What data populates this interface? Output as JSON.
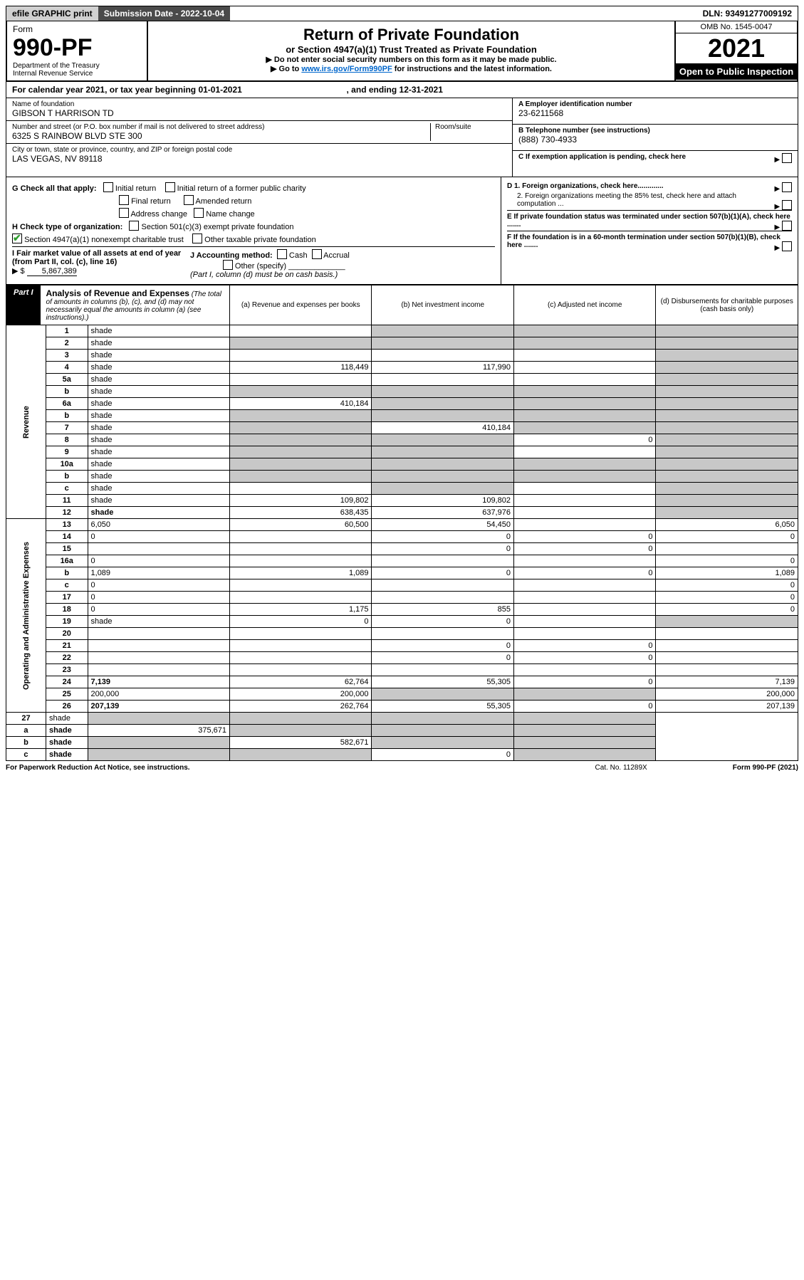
{
  "topbar": {
    "efile": "efile GRAPHIC print",
    "subdate_label": "Submission Date - 2022-10-04",
    "dln": "DLN: 93491277009192"
  },
  "header": {
    "form_label": "Form",
    "form_no": "990-PF",
    "dept": "Department of the Treasury",
    "irs": "Internal Revenue Service",
    "title1": "Return of Private Foundation",
    "title2": "or Section 4947(a)(1) Trust Treated as Private Foundation",
    "instr1": "▶ Do not enter social security numbers on this form as it may be made public.",
    "instr2_pre": "▶ Go to ",
    "instr2_link": "www.irs.gov/Form990PF",
    "instr2_post": " for instructions and the latest information.",
    "omb": "OMB No. 1545-0047",
    "taxyear": "2021",
    "openpub": "Open to Public Inspection"
  },
  "calyear": {
    "text_a": "For calendar year 2021, or tax year beginning 01-01-2021",
    "text_b": ", and ending 12-31-2021"
  },
  "identity": {
    "name_label": "Name of foundation",
    "name": "GIBSON T HARRISON TD",
    "addr_label": "Number and street (or P.O. box number if mail is not delivered to street address)",
    "roomsuite_label": "Room/suite",
    "addr": "6325 S RAINBOW BLVD STE 300",
    "city_label": "City or town, state or province, country, and ZIP or foreign postal code",
    "city": "LAS VEGAS, NV  89118",
    "ein_label": "A Employer identification number",
    "ein": "23-6211568",
    "phone_label": "B Telephone number (see instructions)",
    "phone": "(888) 730-4933",
    "c_label": "C If exemption application is pending, check here"
  },
  "checks_left": {
    "g_label": "G Check all that apply:",
    "g1": "Initial return",
    "g2": "Initial return of a former public charity",
    "g3": "Final return",
    "g4": "Amended return",
    "g5": "Address change",
    "g6": "Name change",
    "h_label": "H Check type of organization:",
    "h1": "Section 501(c)(3) exempt private foundation",
    "h2": "Section 4947(a)(1) nonexempt charitable trust",
    "h3": "Other taxable private foundation",
    "i_label": "I Fair market value of all assets at end of year (from Part II, col. (c), line 16)",
    "i_val_prefix": "▶ $ ",
    "i_val": "5,867,389",
    "j_label": "J Accounting method:",
    "j1": "Cash",
    "j2": "Accrual",
    "j3": "Other (specify)",
    "j_note": "(Part I, column (d) must be on cash basis.)"
  },
  "checks_right": {
    "d1": "D 1. Foreign organizations, check here.............",
    "d2": "2. Foreign organizations meeting the 85% test, check here and attach computation ...",
    "e": "E  If private foundation status was terminated under section 507(b)(1)(A), check here .......",
    "f": "F  If the foundation is in a 60-month termination under section 507(b)(1)(B), check here ......."
  },
  "part1": {
    "label": "Part I",
    "title": "Analysis of Revenue and Expenses",
    "note": " (The total of amounts in columns (b), (c), and (d) may not necessarily equal the amounts in column (a) (see instructions).)",
    "col_a": "(a)  Revenue and expenses per books",
    "col_b": "(b)  Net investment income",
    "col_c": "(c)  Adjusted net income",
    "col_d": "(d)  Disbursements for charitable purposes (cash basis only)"
  },
  "side_labels": {
    "revenue": "Revenue",
    "expenses": "Operating and Administrative Expenses"
  },
  "rows": [
    {
      "n": "1",
      "d": "shade",
      "a": "",
      "b": "shade",
      "c": "shade"
    },
    {
      "n": "2",
      "d": "shade",
      "a": "shade",
      "b": "shade",
      "c": "shade"
    },
    {
      "n": "3",
      "d": "shade",
      "a": "",
      "b": "",
      "c": ""
    },
    {
      "n": "4",
      "d": "shade",
      "a": "118,449",
      "b": "117,990",
      "c": ""
    },
    {
      "n": "5a",
      "d": "shade",
      "a": "",
      "b": "",
      "c": ""
    },
    {
      "n": "b",
      "d": "shade",
      "a": "shade",
      "b": "shade",
      "c": "shade"
    },
    {
      "n": "6a",
      "d": "shade",
      "a": "410,184",
      "b": "shade",
      "c": "shade"
    },
    {
      "n": "b",
      "d": "shade",
      "a": "shade",
      "b": "shade",
      "c": "shade"
    },
    {
      "n": "7",
      "d": "shade",
      "a": "shade",
      "b": "410,184",
      "c": "shade"
    },
    {
      "n": "8",
      "d": "shade",
      "a": "shade",
      "b": "shade",
      "c": "0"
    },
    {
      "n": "9",
      "d": "shade",
      "a": "shade",
      "b": "shade",
      "c": ""
    },
    {
      "n": "10a",
      "d": "shade",
      "a": "shade",
      "b": "shade",
      "c": "shade"
    },
    {
      "n": "b",
      "d": "shade",
      "a": "shade",
      "b": "shade",
      "c": "shade"
    },
    {
      "n": "c",
      "d": "shade",
      "a": "",
      "b": "shade",
      "c": ""
    },
    {
      "n": "11",
      "d": "shade",
      "a": "109,802",
      "b": "109,802",
      "c": ""
    },
    {
      "n": "12",
      "d": "shade",
      "a": "638,435",
      "b": "637,976",
      "c": "",
      "bold": true
    }
  ],
  "exp_rows": [
    {
      "n": "13",
      "d": "6,050",
      "a": "60,500",
      "b": "54,450",
      "c": ""
    },
    {
      "n": "14",
      "d": "0",
      "a": "",
      "b": "0",
      "c": "0"
    },
    {
      "n": "15",
      "d": "",
      "a": "",
      "b": "0",
      "c": "0"
    },
    {
      "n": "16a",
      "d": "0",
      "a": "",
      "b": "",
      "c": ""
    },
    {
      "n": "b",
      "d": "1,089",
      "a": "1,089",
      "b": "0",
      "c": "0"
    },
    {
      "n": "c",
      "d": "0",
      "a": "",
      "b": "",
      "c": ""
    },
    {
      "n": "17",
      "d": "0",
      "a": "",
      "b": "",
      "c": ""
    },
    {
      "n": "18",
      "d": "0",
      "a": "1,175",
      "b": "855",
      "c": ""
    },
    {
      "n": "19",
      "d": "shade",
      "a": "0",
      "b": "0",
      "c": ""
    },
    {
      "n": "20",
      "d": "",
      "a": "",
      "b": "",
      "c": ""
    },
    {
      "n": "21",
      "d": "",
      "a": "",
      "b": "0",
      "c": "0"
    },
    {
      "n": "22",
      "d": "",
      "a": "",
      "b": "0",
      "c": "0"
    },
    {
      "n": "23",
      "d": "",
      "a": "",
      "b": "",
      "c": ""
    },
    {
      "n": "24",
      "d": "7,139",
      "a": "62,764",
      "b": "55,305",
      "c": "0",
      "bold": true
    },
    {
      "n": "25",
      "d": "200,000",
      "a": "200,000",
      "b": "shade",
      "c": "shade"
    },
    {
      "n": "26",
      "d": "207,139",
      "a": "262,764",
      "b": "55,305",
      "c": "0",
      "bold": true
    }
  ],
  "bottom_rows": [
    {
      "n": "27",
      "d": "shade",
      "a": "shade",
      "b": "shade",
      "c": "shade"
    },
    {
      "n": "a",
      "d": "shade",
      "a": "375,671",
      "b": "shade",
      "c": "shade",
      "bold": true
    },
    {
      "n": "b",
      "d": "shade",
      "a": "shade",
      "b": "582,671",
      "c": "shade",
      "bold": true
    },
    {
      "n": "c",
      "d": "shade",
      "a": "shade",
      "b": "shade",
      "c": "0",
      "bold": true
    }
  ],
  "footer": {
    "pra": "For Paperwork Reduction Act Notice, see instructions.",
    "cat": "Cat. No. 11289X",
    "formref": "Form 990-PF (2021)"
  }
}
